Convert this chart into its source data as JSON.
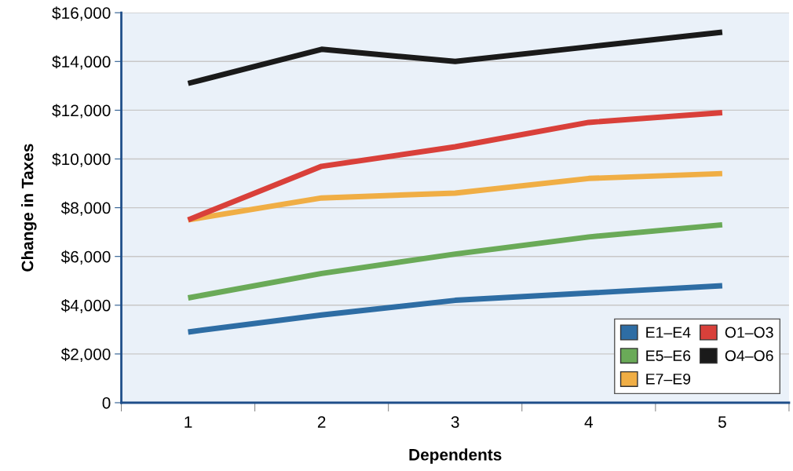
{
  "chart_data": {
    "type": "line",
    "xlabel": "Dependents",
    "ylabel": "Change in Taxes",
    "categories": [
      "1",
      "2",
      "3",
      "4",
      "5"
    ],
    "series": [
      {
        "name": "E1–E4",
        "color": "#2e6da4",
        "values": [
          2900,
          3600,
          4200,
          4500,
          4800
        ]
      },
      {
        "name": "E5–E6",
        "color": "#6aaa58",
        "values": [
          4300,
          5300,
          6100,
          6800,
          7300
        ]
      },
      {
        "name": "E7–E9",
        "color": "#f0ae45",
        "values": [
          7500,
          8400,
          8600,
          9200,
          9400
        ]
      },
      {
        "name": "O1–O3",
        "color": "#d9403a",
        "values": [
          7500,
          9700,
          10500,
          11500,
          11900
        ]
      },
      {
        "name": "O4–O6",
        "color": "#1a1a1a",
        "values": [
          13100,
          14500,
          14000,
          14600,
          15200
        ]
      }
    ],
    "ylim": [
      0,
      16000
    ],
    "yticks": [
      0,
      {
        "value": 2000,
        "label": "$2,000"
      },
      {
        "value": 4000,
        "label": "$4,000"
      },
      {
        "value": 6000,
        "label": "$6,000"
      },
      {
        "value": 8000,
        "label": "$8,000"
      },
      {
        "value": 10000,
        "label": "$10,000"
      },
      {
        "value": 12000,
        "label": "$12,000"
      },
      {
        "value": 14000,
        "label": "$14,000"
      },
      {
        "value": 16000,
        "label": "$16,000"
      }
    ],
    "grid": "y",
    "legend": "bottom right",
    "marker": "none",
    "line_style": "solid"
  }
}
